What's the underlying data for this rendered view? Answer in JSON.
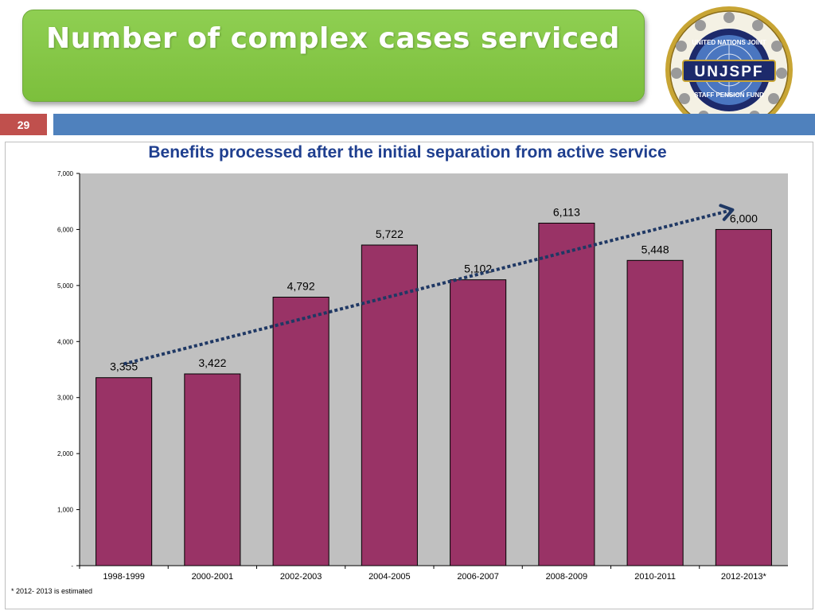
{
  "slide": {
    "title": "Number of complex cases serviced",
    "number": "29",
    "footnote": "* 2012- 2013 is estimated",
    "logo": {
      "icon": "unjspf-emblem-icon",
      "text_top": "UNITED NATIONS JOINT",
      "text_main": "UNJSPF",
      "text_bottom": "STAFF PENSION FUND"
    }
  },
  "chart_data": {
    "type": "bar",
    "title": "Benefits processed after the initial separation from active service",
    "categories": [
      "1998-1999",
      "2000-2001",
      "2002-2003",
      "2004-2005",
      "2006-2007",
      "2008-2009",
      "2010-2011",
      "2012-2013*"
    ],
    "values": [
      3355,
      3422,
      4792,
      5722,
      5102,
      6113,
      5448,
      6000
    ],
    "value_labels": [
      "3,355",
      "3,422",
      "4,792",
      "5,722",
      "5,102",
      "6,113",
      "5,448",
      "6,000"
    ],
    "y_ticks": [
      0,
      1000,
      2000,
      3000,
      4000,
      5000,
      6000,
      7000
    ],
    "y_tick_labels": [
      "-",
      "1,000",
      "2,000",
      "3,000",
      "4,000",
      "5,000",
      "6,000",
      "7,000"
    ],
    "ylim": [
      0,
      7000
    ],
    "xlabel": "",
    "ylabel": "",
    "grid": false,
    "trend": {
      "style": "dotted-arrow",
      "start_value": 3600,
      "end_value": 6350
    },
    "colors": {
      "bar": "#993366",
      "plot_background": "#c0c0c0",
      "trend": "#1f3864"
    }
  }
}
